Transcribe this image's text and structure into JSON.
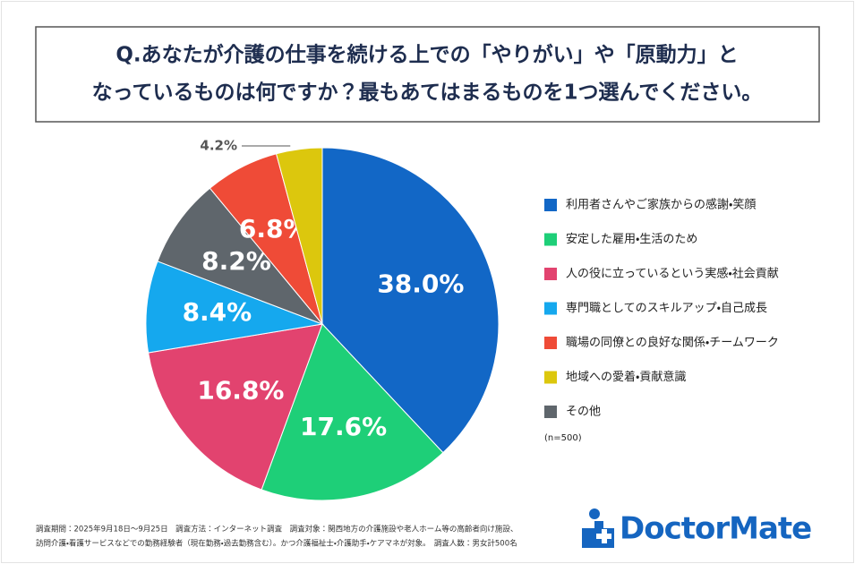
{
  "chart_data": {
    "type": "pie",
    "title_lines": [
      "Q.あなたが介護の仕事を続ける上での「やりがい」や「原動力」と",
      "なっているものは何ですか？最もあてはまるものを1つ選んでください。"
    ],
    "categories": [
      "利用者さんやご家族からの感謝・笑顔",
      "安定した雇用・生活のため",
      "人の役に立っているという実感・社会貢献",
      "専門職としてのスキルアップ・自己成長",
      "その他",
      "職場の同僚との良好な関係・チームワーク",
      "地域への愛着・貢献意識"
    ],
    "values": [
      38.0,
      17.6,
      16.8,
      8.4,
      8.2,
      6.8,
      4.2
    ],
    "value_labels": [
      "38.0%",
      "17.6%",
      "16.8%",
      "8.4%",
      "8.2%",
      "6.8%",
      "4.2%"
    ],
    "colors": [
      "#1267c6",
      "#1ecf78",
      "#e2436f",
      "#15a8ee",
      "#5f666c",
      "#ef4b37",
      "#dcc70d"
    ],
    "legend_order": [
      0,
      1,
      2,
      3,
      5,
      6,
      4
    ],
    "sample_note": "(n=500)",
    "footnote_lines": [
      "調査期間：2025年9月18日～9月25日　調査方法：インターネット調査　調査対象：関西地方の介護施設や老人ホーム等の高齢者向け施設、",
      "訪問介護・看護サービスなどでの勤務経験者（現在勤務・過去勤務含む）。かつ介護福祉士・介護助手・ケアマネが対象。　調査人数：男女計500名"
    ],
    "logo": "DoctorMate"
  }
}
